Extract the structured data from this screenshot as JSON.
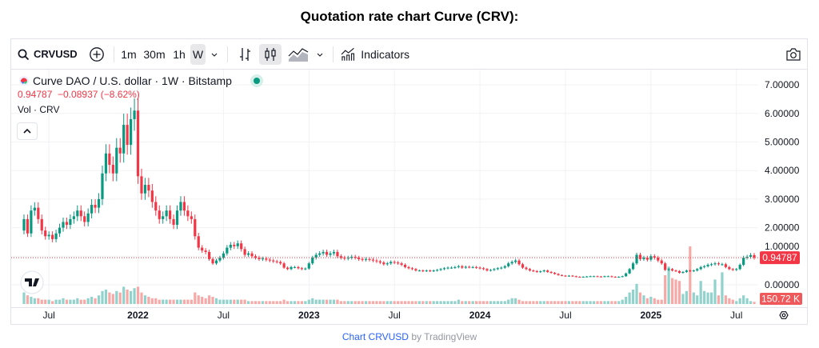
{
  "page_title": "Quotation rate chart Curve (CRV):",
  "toolbar": {
    "symbol": "CRVUSD",
    "intervals": [
      "1m",
      "30m",
      "1h",
      "W"
    ],
    "active_interval": "W",
    "indicators_label": "Indicators"
  },
  "legend": {
    "series_title": "Curve DAO / U.S. dollar · 1W · Bitstamp",
    "change_line": "0.94787  −0.08937 (−8.62%)",
    "volume_title": "Vol · CRV"
  },
  "footer": {
    "link": "Chart CRVUSD",
    "suffix": " by TradingView"
  },
  "colors": {
    "up": "#089981",
    "down": "#f23645",
    "up_vol": "#92d2cc",
    "down_vol": "#f7a9a7",
    "grid": "#f2f2f4"
  },
  "chart_data": {
    "type": "candlestick",
    "title": "Curve DAO / U.S. dollar · 1W · Bitstamp",
    "interval": "1W",
    "x_unit": "week index",
    "ylim": [
      -0.2,
      7.2
    ],
    "y_ticks": [
      "0.00000",
      "1.00000",
      "2.00000",
      "3.00000",
      "4.00000",
      "5.00000",
      "6.00000",
      "7.00000"
    ],
    "x_ticks": [
      {
        "label": "Jul",
        "week": 7,
        "bold": false
      },
      {
        "label": "2022",
        "week": 32,
        "bold": true
      },
      {
        "label": "Jul",
        "week": 56,
        "bold": false
      },
      {
        "label": "2023",
        "week": 80,
        "bold": true
      },
      {
        "label": "Jul",
        "week": 104,
        "bold": false
      },
      {
        "label": "2024",
        "week": 128,
        "bold": true
      },
      {
        "label": "Jul",
        "week": 152,
        "bold": false
      },
      {
        "label": "2025",
        "week": 176,
        "bold": true
      },
      {
        "label": "Jul",
        "week": 200,
        "bold": false
      }
    ],
    "first_open": 1.9,
    "closes": [
      2.3,
      1.8,
      2.6,
      2.7,
      2.3,
      1.9,
      1.7,
      1.75,
      1.6,
      1.8,
      2.0,
      2.2,
      2.1,
      2.3,
      2.4,
      2.6,
      2.4,
      2.2,
      2.5,
      2.8,
      2.7,
      3.0,
      3.9,
      4.6,
      4.2,
      3.9,
      4.8,
      4.6,
      5.6,
      4.9,
      5.8,
      6.1,
      3.8,
      3.2,
      3.5,
      3.3,
      2.9,
      2.6,
      2.3,
      2.4,
      2.6,
      2.3,
      2.1,
      2.6,
      2.9,
      2.6,
      2.4,
      2.3,
      1.7,
      1.3,
      1.2,
      1.15,
      0.9,
      0.75,
      0.85,
      0.95,
      1.1,
      1.3,
      1.4,
      1.35,
      1.45,
      1.25,
      1.05,
      1.1,
      1.0,
      0.95,
      0.9,
      0.92,
      0.88,
      0.85,
      0.82,
      0.8,
      0.75,
      0.6,
      0.55,
      0.62,
      0.62,
      0.58,
      0.55,
      0.57,
      0.75,
      0.95,
      1.05,
      1.1,
      1.15,
      1.05,
      1.1,
      1.15,
      1.0,
      0.95,
      0.92,
      0.95,
      0.98,
      0.95,
      0.9,
      0.88,
      0.9,
      0.88,
      0.85,
      0.82,
      0.78,
      0.72,
      0.75,
      0.8,
      0.78,
      0.75,
      0.7,
      0.62,
      0.58,
      0.55,
      0.5,
      0.5,
      0.48,
      0.5,
      0.48,
      0.5,
      0.52,
      0.55,
      0.58,
      0.6,
      0.6,
      0.62,
      0.65,
      0.6,
      0.63,
      0.62,
      0.62,
      0.6,
      0.58,
      0.55,
      0.5,
      0.52,
      0.55,
      0.58,
      0.6,
      0.65,
      0.75,
      0.8,
      0.85,
      0.72,
      0.6,
      0.55,
      0.5,
      0.48,
      0.45,
      0.47,
      0.5,
      0.45,
      0.42,
      0.38,
      0.34,
      0.32,
      0.3,
      0.32,
      0.3,
      0.28,
      0.27,
      0.28,
      0.29,
      0.3,
      0.3,
      0.29,
      0.28,
      0.3,
      0.3,
      0.28,
      0.27,
      0.28,
      0.3,
      0.4,
      0.55,
      0.75,
      1.05,
      0.9,
      0.95,
      0.88,
      1.0,
      0.95,
      0.85,
      0.75,
      0.52,
      0.55,
      0.5,
      0.48,
      0.42,
      0.45,
      0.5,
      0.48,
      0.5,
      0.55,
      0.62,
      0.65,
      0.7,
      0.72,
      0.75,
      0.72,
      0.72,
      0.62,
      0.55,
      0.52,
      0.55,
      0.7,
      0.95,
      0.98,
      1.04,
      0.94787
    ],
    "volumes_100k": [
      8,
      6,
      5,
      4,
      4,
      3,
      3,
      3,
      2,
      3,
      3,
      4,
      3,
      3,
      3,
      4,
      3,
      3,
      4,
      5,
      4,
      6,
      9,
      10,
      8,
      7,
      9,
      8,
      12,
      10,
      9,
      11,
      12,
      8,
      6,
      5,
      4,
      4,
      3,
      3,
      3,
      3,
      3,
      3,
      3,
      3,
      3,
      3,
      8,
      6,
      5,
      4,
      6,
      5,
      4,
      3,
      3,
      3,
      3,
      3,
      3,
      3,
      3,
      2,
      2,
      2,
      2,
      2,
      2,
      2,
      2,
      2,
      2,
      3,
      2,
      2,
      2,
      2,
      2,
      2,
      3,
      4,
      3,
      3,
      3,
      3,
      3,
      3,
      3,
      2,
      2,
      2,
      2,
      2,
      2,
      2,
      2,
      2,
      2,
      2,
      2,
      2,
      2,
      2,
      2,
      2,
      2,
      2,
      2,
      2,
      2,
      2,
      2,
      2,
      2,
      2,
      2,
      2,
      2,
      2,
      2,
      2,
      3,
      2,
      2,
      2,
      2,
      2,
      2,
      2,
      2,
      2,
      2,
      2,
      2,
      2,
      3,
      4,
      4,
      3,
      2,
      2,
      2,
      2,
      2,
      2,
      2,
      2,
      2,
      2,
      2,
      2,
      2,
      2,
      2,
      2,
      2,
      2,
      2,
      2,
      2,
      2,
      2,
      2,
      2,
      2,
      2,
      2,
      3,
      5,
      8,
      10,
      14,
      8,
      6,
      4,
      5,
      4,
      3,
      3,
      20,
      26,
      18,
      17,
      16,
      7,
      9,
      40,
      8,
      6,
      16,
      9,
      8,
      8,
      17,
      6,
      22,
      6,
      4,
      3,
      2,
      4,
      6,
      4,
      2,
      1.5072
    ],
    "last_price_label": "0.94787",
    "last_volume_label": "150.72 K"
  }
}
